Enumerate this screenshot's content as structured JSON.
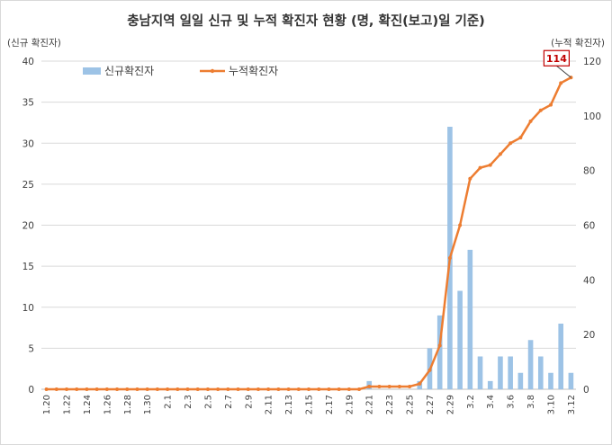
{
  "chart_data": {
    "type": "bar",
    "title": "충남지역 일일 신규 및 누적 확진자 현황 (명, 확진(보고)일 기준)",
    "ylabel_left": "(신규 확진자)",
    "ylabel_right": "(누적 확진자)",
    "ylim_left": [
      0,
      40
    ],
    "yticks_left": [
      "0",
      "5",
      "10",
      "15",
      "20",
      "25",
      "30",
      "35",
      "40"
    ],
    "ylim_right": [
      0,
      120
    ],
    "yticks_right": [
      "0",
      "20",
      "40",
      "60",
      "80",
      "100",
      "120"
    ],
    "grid": "horizontal",
    "legend_position": "top-left",
    "categories": [
      "1.20",
      "1.21",
      "1.22",
      "1.23",
      "1.24",
      "1.25",
      "1.26",
      "1.27",
      "1.28",
      "1.29",
      "1.30",
      "1.31",
      "2.1",
      "2.2",
      "2.3",
      "2.4",
      "2.5",
      "2.6",
      "2.7",
      "2.8",
      "2.9",
      "2.10",
      "2.11",
      "2.12",
      "2.13",
      "2.14",
      "2.15",
      "2.16",
      "2.17",
      "2.18",
      "2.19",
      "2.20",
      "2.21",
      "2.22",
      "2.23",
      "2.24",
      "2.25",
      "2.26",
      "2.27",
      "2.28",
      "2.29",
      "3.1",
      "3.2",
      "3.3",
      "3.4",
      "3.5",
      "3.6",
      "3.7",
      "3.8",
      "3.9",
      "3.10",
      "3.11",
      "3.12"
    ],
    "xtick_labels": [
      "1.20",
      "",
      "1.22",
      "",
      "1.24",
      "",
      "1.26",
      "",
      "1.28",
      "",
      "1.30",
      "",
      "2.1",
      "",
      "2.3",
      "",
      "2.5",
      "",
      "2.7",
      "",
      "2.9",
      "",
      "2.11",
      "",
      "2.13",
      "",
      "2.15",
      "",
      "2.17",
      "",
      "2.19",
      "",
      "2.21",
      "",
      "2.23",
      "",
      "2.25",
      "",
      "2.27",
      "",
      "2.29",
      "",
      "3.2",
      "",
      "3.4",
      "",
      "3.6",
      "",
      "3.8",
      "",
      "3.10",
      "",
      "3.12"
    ],
    "series": [
      {
        "name": "신규확진자",
        "type": "bar",
        "axis": "left",
        "color": "#9dc3e6",
        "values": [
          0,
          0,
          0,
          0,
          0,
          0,
          0,
          0,
          0,
          0,
          0,
          0,
          0,
          0,
          0,
          0,
          0,
          0,
          0,
          0,
          0,
          0,
          0,
          0,
          0,
          0,
          0,
          0,
          0,
          0,
          0,
          0,
          1,
          0,
          0,
          0,
          0,
          1,
          5,
          9,
          32,
          12,
          17,
          4,
          1,
          4,
          4,
          2,
          6,
          4,
          2,
          8,
          2
        ]
      },
      {
        "name": "누적확진자",
        "type": "line",
        "axis": "right",
        "color": "#ed7d31",
        "values": [
          0,
          0,
          0,
          0,
          0,
          0,
          0,
          0,
          0,
          0,
          0,
          0,
          0,
          0,
          0,
          0,
          0,
          0,
          0,
          0,
          0,
          0,
          0,
          0,
          0,
          0,
          0,
          0,
          0,
          0,
          0,
          0,
          1,
          1,
          1,
          1,
          1,
          2,
          7,
          16,
          48,
          60,
          77,
          81,
          82,
          86,
          90,
          92,
          98,
          102,
          104,
          112,
          114
        ]
      }
    ],
    "callout": {
      "label": "114"
    }
  }
}
